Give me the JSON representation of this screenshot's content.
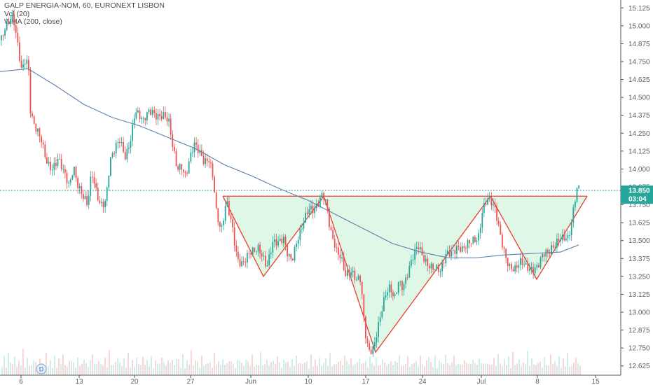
{
  "legend": {
    "line1": "GALP ENERGIA-NOM, 60, EURONEXT LISBON",
    "line2": "Vol (20)",
    "line3": "WMA (200, close)"
  },
  "price_tag": {
    "price": "13.850",
    "countdown": "03:04"
  },
  "marker_label": "D",
  "colors": {
    "up": "#26a69a",
    "down": "#ef5350",
    "wma": "#5b80a8",
    "pattern_line": "#ef3b2c",
    "pattern_fill": "#dff7e6",
    "resistance": "#26a69a",
    "axis_text": "#5d606b",
    "price_tag_bg": "#26a69a"
  },
  "chart_data": {
    "type": "candlestick",
    "y_range": [
      12.56,
      15.18
    ],
    "y_ticks": [
      "15.125",
      "15.000",
      "14.875",
      "14.750",
      "14.625",
      "14.500",
      "14.375",
      "14.250",
      "14.125",
      "14.000",
      "13.875",
      "13.750",
      "13.625",
      "13.500",
      "13.375",
      "13.250",
      "13.125",
      "13.000",
      "12.875",
      "12.750",
      "12.625"
    ],
    "x_ticks": [
      "6",
      "13",
      "20",
      "27",
      "Jun",
      "10",
      "17",
      "24",
      "Jul",
      "8",
      "15"
    ],
    "current_price": 13.85,
    "price_path": [
      [
        0,
        14.9
      ],
      [
        8,
        14.97
      ],
      [
        18,
        15.05
      ],
      [
        24,
        14.9
      ],
      [
        30,
        14.72
      ],
      [
        36,
        14.8
      ],
      [
        40,
        14.68
      ],
      [
        43,
        14.35
      ],
      [
        50,
        14.25
      ],
      [
        58,
        14.2
      ],
      [
        66,
        14.08
      ],
      [
        74,
        14.02
      ],
      [
        82,
        14.05
      ],
      [
        90,
        13.95
      ],
      [
        98,
        13.88
      ],
      [
        104,
        14.05
      ],
      [
        110,
        13.92
      ],
      [
        118,
        13.8
      ],
      [
        124,
        13.72
      ],
      [
        130,
        13.95
      ],
      [
        136,
        13.85
      ],
      [
        142,
        13.78
      ],
      [
        150,
        13.8
      ],
      [
        156,
        14.05
      ],
      [
        162,
        14.1
      ],
      [
        170,
        14.18
      ],
      [
        178,
        14.1
      ],
      [
        186,
        14.25
      ],
      [
        192,
        14.42
      ],
      [
        198,
        14.35
      ],
      [
        204,
        14.3
      ],
      [
        210,
        14.38
      ],
      [
        216,
        14.42
      ],
      [
        224,
        14.4
      ],
      [
        232,
        14.38
      ],
      [
        240,
        14.3
      ],
      [
        246,
        14.12
      ],
      [
        252,
        14.0
      ],
      [
        258,
        14.05
      ],
      [
        264,
        13.98
      ],
      [
        270,
        14.08
      ],
      [
        276,
        14.15
      ],
      [
        282,
        14.1
      ],
      [
        290,
        14.05
      ],
      [
        298,
        14.1
      ],
      [
        304,
        13.95
      ],
      [
        308,
        13.7
      ],
      [
        312,
        13.6
      ],
      [
        316,
        13.55
      ],
      [
        322,
        13.75
      ],
      [
        330,
        13.62
      ],
      [
        338,
        13.4
      ],
      [
        346,
        13.35
      ],
      [
        354,
        13.38
      ],
      [
        362,
        13.4
      ],
      [
        368,
        13.45
      ],
      [
        374,
        13.42
      ],
      [
        380,
        13.35
      ],
      [
        388,
        13.48
      ],
      [
        396,
        13.45
      ],
      [
        404,
        13.5
      ],
      [
        410,
        13.42
      ],
      [
        416,
        13.4
      ],
      [
        422,
        13.5
      ],
      [
        428,
        13.55
      ],
      [
        434,
        13.62
      ],
      [
        440,
        13.7
      ],
      [
        446,
        13.72
      ],
      [
        452,
        13.78
      ],
      [
        458,
        13.85
      ],
      [
        462,
        13.82
      ],
      [
        466,
        13.72
      ],
      [
        470,
        13.55
      ],
      [
        474,
        13.48
      ],
      [
        480,
        13.4
      ],
      [
        486,
        13.4
      ],
      [
        492,
        13.3
      ],
      [
        500,
        13.3
      ],
      [
        508,
        13.2
      ],
      [
        514,
        13.2
      ],
      [
        518,
        12.95
      ],
      [
        522,
        12.8
      ],
      [
        526,
        12.75
      ],
      [
        532,
        12.78
      ],
      [
        538,
        12.9
      ],
      [
        544,
        13.0
      ],
      [
        550,
        13.1
      ],
      [
        556,
        13.15
      ],
      [
        562,
        13.1
      ],
      [
        568,
        13.25
      ],
      [
        574,
        13.2
      ],
      [
        580,
        13.25
      ],
      [
        588,
        13.35
      ],
      [
        596,
        13.45
      ],
      [
        604,
        13.4
      ],
      [
        612,
        13.35
      ],
      [
        620,
        13.3
      ],
      [
        628,
        13.25
      ],
      [
        636,
        13.4
      ],
      [
        644,
        13.45
      ],
      [
        652,
        13.48
      ],
      [
        660,
        13.42
      ],
      [
        668,
        13.45
      ],
      [
        676,
        13.5
      ],
      [
        682,
        13.55
      ],
      [
        688,
        13.75
      ],
      [
        694,
        13.8
      ],
      [
        700,
        13.75
      ],
      [
        706,
        13.68
      ],
      [
        712,
        13.55
      ],
      [
        718,
        13.45
      ],
      [
        726,
        13.35
      ],
      [
        734,
        13.3
      ],
      [
        742,
        13.32
      ],
      [
        750,
        13.3
      ],
      [
        758,
        13.32
      ],
      [
        766,
        13.35
      ],
      [
        774,
        13.4
      ],
      [
        782,
        13.38
      ],
      [
        790,
        13.45
      ],
      [
        798,
        13.55
      ],
      [
        806,
        13.55
      ],
      [
        810,
        13.52
      ],
      [
        814,
        13.58
      ],
      [
        818,
        13.7
      ],
      [
        822,
        13.82
      ],
      [
        826,
        13.85
      ]
    ],
    "wma_path": [
      [
        0,
        14.68
      ],
      [
        40,
        14.7
      ],
      [
        80,
        14.58
      ],
      [
        120,
        14.45
      ],
      [
        160,
        14.36
      ],
      [
        200,
        14.3
      ],
      [
        240,
        14.22
      ],
      [
        280,
        14.14
      ],
      [
        320,
        14.03
      ],
      [
        360,
        13.95
      ],
      [
        400,
        13.86
      ],
      [
        440,
        13.78
      ],
      [
        480,
        13.68
      ],
      [
        520,
        13.58
      ],
      [
        560,
        13.48
      ],
      [
        600,
        13.42
      ],
      [
        640,
        13.38
      ],
      [
        680,
        13.38
      ],
      [
        720,
        13.4
      ],
      [
        760,
        13.41
      ],
      [
        800,
        13.42
      ],
      [
        826,
        13.47
      ]
    ],
    "volumes": [
      0.35,
      0.5,
      0.28,
      0.6,
      0.42,
      0.31,
      0.55,
      0.25,
      0.4,
      0.33,
      0.7,
      0.3,
      0.45,
      0.38,
      0.26,
      0.52,
      0.36,
      0.29,
      0.48,
      0.34,
      0.27,
      0.61,
      0.33,
      0.4,
      0.3,
      0.5,
      0.28,
      0.44,
      0.36,
      0.58,
      0.3,
      0.26,
      0.4,
      0.5,
      0.34,
      0.29,
      0.46,
      0.38,
      0.3,
      0.55,
      0.32,
      0.27,
      0.42,
      0.6,
      0.35,
      0.3,
      0.5,
      0.28,
      0.38,
      0.45,
      0.3,
      0.66,
      0.34,
      0.29,
      0.4,
      0.52,
      0.36,
      0.3,
      0.44,
      0.28,
      0.58,
      0.33,
      0.4,
      0.3,
      0.47,
      0.36,
      0.29,
      0.54,
      0.32,
      0.42,
      0.3,
      0.5,
      0.27,
      0.38,
      0.46,
      0.31,
      0.6,
      0.35,
      0.28,
      0.44
    ],
    "pattern": {
      "neckline": [
        [
          318,
          13.81
        ],
        [
          838,
          13.81
        ]
      ],
      "left_shoulder": [
        [
          318,
          13.81
        ],
        [
          376,
          13.25
        ],
        [
          462,
          13.81
        ]
      ],
      "head": [
        [
          462,
          13.81
        ],
        [
          536,
          12.72
        ],
        [
          700,
          13.81
        ]
      ],
      "right_shoulder": [
        [
          700,
          13.81
        ],
        [
          766,
          13.23
        ],
        [
          838,
          13.81
        ]
      ]
    }
  }
}
